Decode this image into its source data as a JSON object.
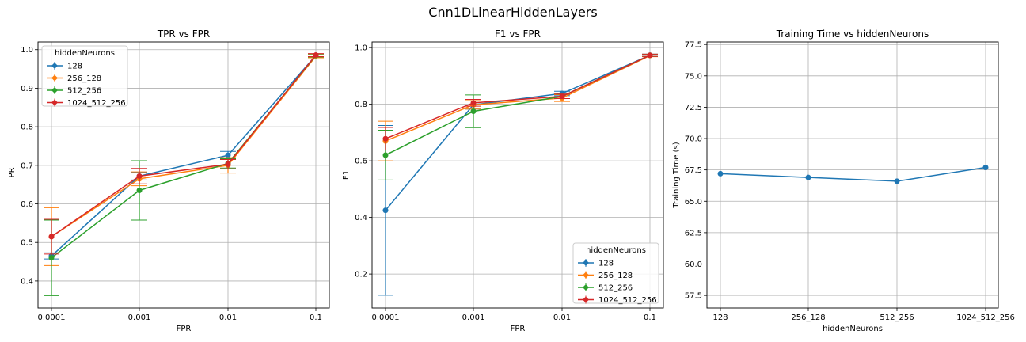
{
  "figure": {
    "suptitle": "Cnn1DLinearHiddenLayers"
  },
  "colors": {
    "128": "#1f77b4",
    "256_128": "#ff7f0e",
    "512_256": "#2ca02c",
    "1024_512_256": "#d62728",
    "grid": "#b0b0b0"
  },
  "chart_data": [
    {
      "type": "line",
      "title": "TPR vs FPR",
      "xlabel": "FPR",
      "ylabel": "TPR",
      "x": [
        "0.0001",
        "0.001",
        "0.01",
        "0.1"
      ],
      "xscale": "log",
      "ylim": [
        0.33,
        1.02
      ],
      "yticks": [
        "0.4",
        "0.5",
        "0.6",
        "0.7",
        "0.8",
        "0.9",
        "1.0"
      ],
      "grid": true,
      "legend": {
        "title": "hiddenNeurons",
        "placement": "upper-left"
      },
      "series": [
        {
          "name": "128",
          "values": [
            0.465,
            0.672,
            0.726,
            0.985
          ],
          "err": [
            0.008,
            0.01,
            0.01,
            0.004
          ]
        },
        {
          "name": "256_128",
          "values": [
            0.515,
            0.665,
            0.7,
            0.983
          ],
          "err": [
            0.075,
            0.018,
            0.02,
            0.004
          ]
        },
        {
          "name": "512_256",
          "values": [
            0.46,
            0.635,
            0.705,
            0.985
          ],
          "err": [
            0.098,
            0.077,
            0.012,
            0.004
          ]
        },
        {
          "name": "1024_512_256",
          "values": [
            0.515,
            0.672,
            0.703,
            0.986
          ],
          "err": [
            0.045,
            0.02,
            0.012,
            0.004
          ]
        }
      ]
    },
    {
      "type": "line",
      "title": "F1 vs FPR",
      "xlabel": "FPR",
      "ylabel": "F1",
      "x": [
        "0.0001",
        "0.001",
        "0.01",
        "0.1"
      ],
      "xscale": "log",
      "ylim": [
        0.08,
        1.02
      ],
      "yticks": [
        "0.2",
        "0.4",
        "0.6",
        "0.8",
        "1.0"
      ],
      "grid": true,
      "legend": {
        "title": "hiddenNeurons",
        "placement": "lower-right"
      },
      "series": [
        {
          "name": "128",
          "values": [
            0.425,
            0.798,
            0.838,
            0.973
          ],
          "err": [
            0.3,
            0.015,
            0.008,
            0.004
          ]
        },
        {
          "name": "256_128",
          "values": [
            0.67,
            0.798,
            0.822,
            0.972
          ],
          "err": [
            0.07,
            0.015,
            0.012,
            0.004
          ]
        },
        {
          "name": "512_256",
          "values": [
            0.62,
            0.775,
            0.828,
            0.973
          ],
          "err": [
            0.088,
            0.058,
            0.008,
            0.004
          ]
        },
        {
          "name": "1024_512_256",
          "values": [
            0.678,
            0.805,
            0.828,
            0.973
          ],
          "err": [
            0.04,
            0.012,
            0.008,
            0.004
          ]
        }
      ]
    },
    {
      "type": "line",
      "title": "Training Time vs hiddenNeurons",
      "xlabel": "hiddenNeurons",
      "ylabel": "Training Time (s)",
      "categories": [
        "128",
        "256_128",
        "512_256",
        "1024_512_256"
      ],
      "ylim": [
        56.5,
        77.7
      ],
      "yticks": [
        "57.5",
        "60.0",
        "62.5",
        "65.0",
        "67.5",
        "70.0",
        "72.5",
        "75.0",
        "77.5"
      ],
      "grid": true,
      "series": [
        {
          "values": [
            67.2,
            66.9,
            66.6,
            67.7
          ]
        }
      ]
    }
  ]
}
